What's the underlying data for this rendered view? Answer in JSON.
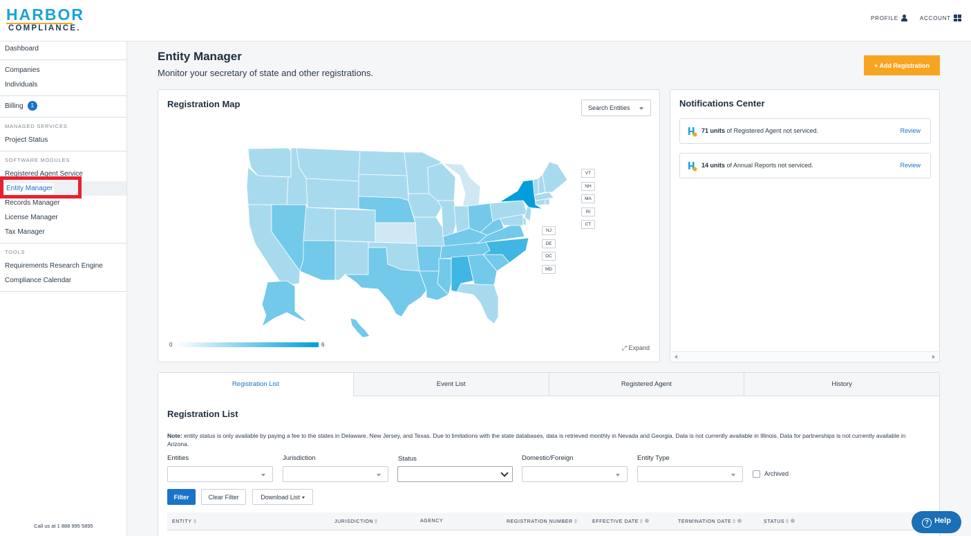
{
  "header": {
    "logo_top": "HARBOR",
    "logo_bottom": "COMPLIANCE.",
    "profile": "PROFILE",
    "account": "ACCOUNT"
  },
  "sidebar": {
    "dashboard": "Dashboard",
    "companies": "Companies",
    "individuals": "Individuals",
    "billing": "Billing",
    "billing_badge": "1",
    "managed_heading": "MANAGED SERVICES",
    "project_status": "Project Status",
    "modules_heading": "SOFTWARE MODULES",
    "registered_agent": "Registered Agent Service",
    "entity_manager": "Entity Manager",
    "records_manager": "Records Manager",
    "license_manager": "License Manager",
    "tax_manager": "Tax Manager",
    "tools_heading": "TOOLS",
    "requirements": "Requirements Research Engine",
    "calendar": "Compliance Calendar",
    "footer": "Call us at 1 888 995 5895"
  },
  "main": {
    "title": "Entity Manager",
    "subtitle": "Monitor your secretary of state and other registrations.",
    "add_button": "+ Add Registration"
  },
  "map": {
    "title": "Registration Map",
    "search_placeholder": "Search Entities",
    "tags_ne": [
      "VT",
      "NH",
      "MA",
      "RI",
      "CT"
    ],
    "tags_mid": [
      "NJ",
      "DE",
      "DC",
      "MD"
    ],
    "legend_min": "0",
    "legend_max": "6",
    "expand": "Expand",
    "colors": {
      "light": "#a8daee",
      "mid": "#72c9ea",
      "strong": "#3fb6e4",
      "max": "#029ddb",
      "pale": "#cfe8f4"
    }
  },
  "notifications": {
    "title": "Notifications Center",
    "items": [
      {
        "count": "71 units",
        "text": "of Registered Agent not serviced.",
        "action": "Review"
      },
      {
        "count": "14 units",
        "text": "of Annual Reports not serviced.",
        "action": "Review"
      }
    ]
  },
  "tabs": [
    "Registration List",
    "Event List",
    "Registered Agent",
    "History"
  ],
  "list": {
    "title": "Registration List",
    "note_label": "Note:",
    "note_text": " entity status is only available by paying a fee to the states in Delaware, New Jersey, and Texas. Due to limitations with the state databases, data is retrieved monthly in Nevada and Georgia. Data is not currently available in Illinois. Data for partnerships is not currently available in Arizona.",
    "filters": [
      "Entities",
      "Jurisdiction",
      "Status",
      "Domestic/Foreign",
      "Entity Type"
    ],
    "archived": "Archived",
    "filter_btn": "Filter",
    "clear_btn": "Clear Filter",
    "download_btn": "Download List",
    "columns": [
      "ENTITY",
      "JURISDICTION",
      "AGENCY",
      "REGISTRATION NUMBER",
      "EFFECTIVE DATE",
      "TERMINATION DATE",
      "STATUS"
    ]
  },
  "help": "Help"
}
